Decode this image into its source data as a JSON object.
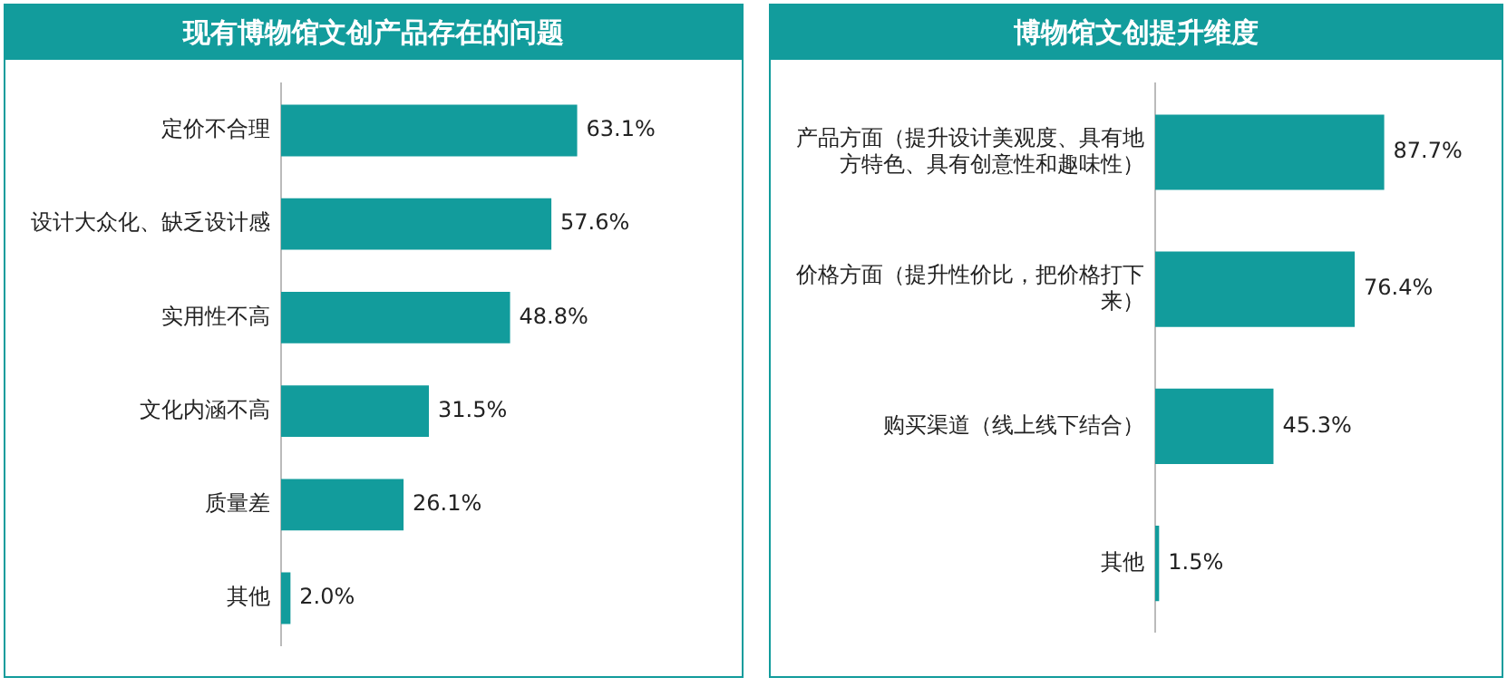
{
  "chart_data": [
    {
      "type": "bar",
      "orientation": "horizontal",
      "title": "现有博物馆文创产品存在的问题",
      "categories": [
        "定价不合理",
        "设计大众化、缺乏设计感",
        "实用性不高",
        "文化内涵不高",
        "质量差",
        "其他"
      ],
      "series": [
        {
          "color": "#129c9c",
          "values": [
            63.1,
            57.6,
            48.8,
            31.5,
            26.1,
            2.0
          ],
          "value_labels": [
            "63.1%",
            "57.6%",
            "48.8%",
            "31.5%",
            "26.1%",
            "2.0%"
          ]
        }
      ],
      "tick_labels": "y",
      "grid": false,
      "legend": false
    },
    {
      "type": "bar",
      "orientation": "horizontal",
      "title": "博物馆文创提升维度",
      "categories": [
        "产品方面（提升设计美观度、具有地方特色、具有创意性和趣味性）",
        "价格方面（提升性价比，把价格打下来）",
        "购买渠道（线上线下结合）",
        "其他"
      ],
      "series": [
        {
          "color": "#129c9c",
          "values": [
            87.7,
            76.4,
            45.3,
            1.5
          ],
          "value_labels": [
            "87.7%",
            "76.4%",
            "45.3%",
            "1.5%"
          ]
        }
      ],
      "tick_labels": "y",
      "grid": false,
      "legend": false
    }
  ]
}
